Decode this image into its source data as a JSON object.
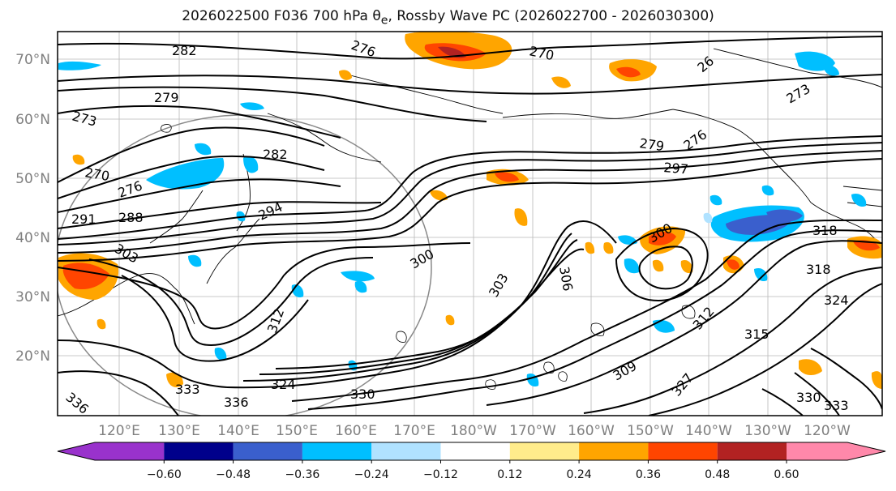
{
  "title_main": "2026022500 F036 700 hPa",
  "title_symbol": "θ",
  "title_sub": "e",
  "title_rest": ", Rossby Wave PC (2026022700 - 2026030300)",
  "lat_labels": [
    "70°N",
    "60°N",
    "50°N",
    "40°N",
    "30°N",
    "20°N"
  ],
  "lon_labels": [
    "120°E",
    "130°E",
    "140°E",
    "150°E",
    "160°E",
    "170°E",
    "180°W",
    "170°W",
    "160°W",
    "150°W",
    "140°W",
    "130°W",
    "120°W"
  ],
  "colorbar": {
    "colors": [
      "#9932cc",
      "#00008b",
      "#3a5fcd",
      "#00bfff",
      "#b0e2ff",
      "#ffffff",
      "#ffec8b",
      "#ffa500",
      "#ff4500",
      "#b22222",
      "#ff88aa"
    ],
    "labels": [
      "−0.60",
      "−0.48",
      "−0.36",
      "−0.24",
      "−0.12",
      "0.12",
      "0.24",
      "0.36",
      "0.48",
      "0.60"
    ]
  },
  "contour_labels": [
    "282",
    "276",
    "270",
    "26",
    "273",
    "279",
    "273",
    "282",
    "279",
    "276",
    "270",
    "276",
    "297",
    "291",
    "288",
    "294",
    "303",
    "300",
    "300",
    "306",
    "318",
    "324",
    "303",
    "315",
    "312",
    "327",
    "330",
    "333",
    "336",
    "324",
    "330",
    "318",
    "309",
    "312",
    "333",
    "336"
  ]
}
